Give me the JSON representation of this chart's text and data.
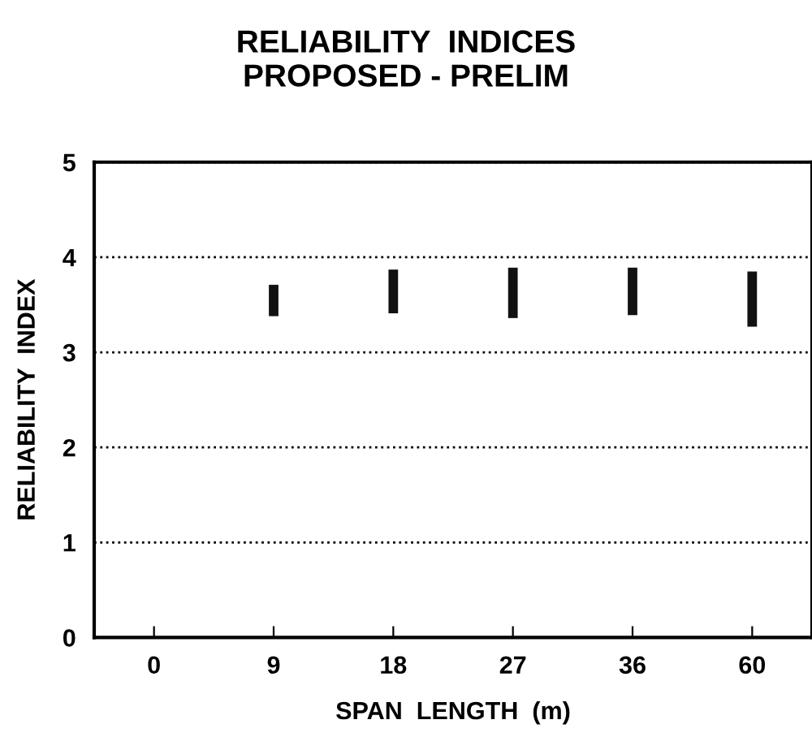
{
  "chart_data": {
    "type": "bar",
    "title": "RELIABILITY  INDICES\nPROPOSED - PRELIM",
    "xlabel": "SPAN  LENGTH  (m)",
    "ylabel": "RELIABILITY  INDEX",
    "categories": [
      "0",
      "9",
      "18",
      "27",
      "36",
      "60"
    ],
    "values": [
      null,
      0.33,
      0.46,
      0.53,
      0.5,
      0.58
    ],
    "base": [
      null,
      3.38,
      3.41,
      3.36,
      3.39,
      3.27
    ],
    "color": "#111111",
    "ylim": [
      0,
      5
    ],
    "yticks": [
      0,
      1,
      2,
      3,
      4,
      5
    ],
    "grid": "y",
    "line_style": "dotted"
  }
}
